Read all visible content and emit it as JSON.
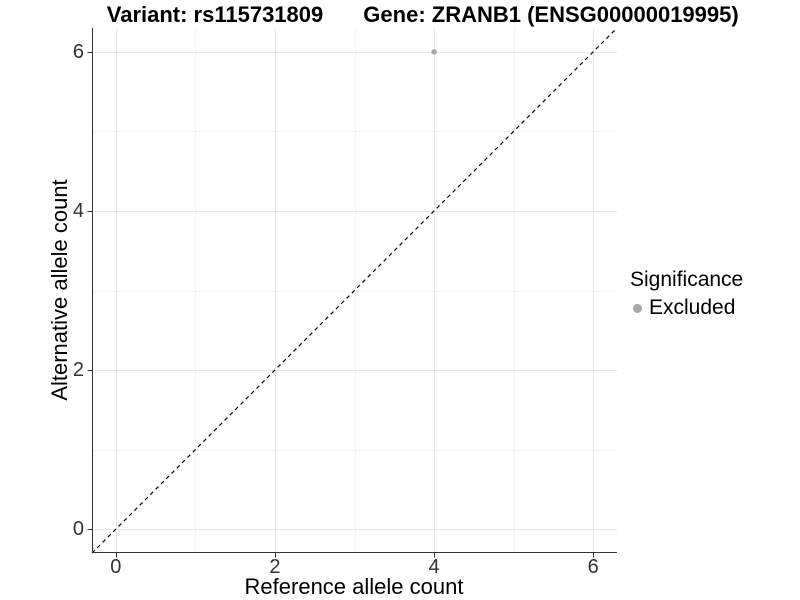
{
  "titles": {
    "variant": "Variant: rs115731809",
    "gene": "Gene: ZRANB1 (ENSG00000019995)"
  },
  "axis_x": {
    "title": "Reference allele count"
  },
  "axis_y": {
    "title": "Alternative allele count"
  },
  "legend": {
    "title": "Significance",
    "items": [
      {
        "label": "Excluded",
        "color": "#a8a8a8"
      }
    ]
  },
  "chart_data": {
    "type": "scatter",
    "title_left": "Variant: rs115731809",
    "title_right": "Gene: ZRANB1 (ENSG00000019995)",
    "xlabel": "Reference allele count",
    "ylabel": "Alternative allele count",
    "xlim": [
      -0.3,
      6.3
    ],
    "ylim": [
      -0.3,
      6.3
    ],
    "xticks": [
      0,
      2,
      4,
      6
    ],
    "yticks": [
      0,
      2,
      4,
      6
    ],
    "grid": true,
    "minor_grid": true,
    "legend_position": "right",
    "series": [
      {
        "name": "Excluded",
        "color": "#a8a8a8",
        "points": [
          [
            4,
            6
          ]
        ]
      }
    ],
    "reference_line": {
      "type": "identity",
      "style": "dashed",
      "color": "#000000",
      "from": [
        -0.3,
        -0.3
      ],
      "to": [
        6.3,
        6.3
      ]
    }
  }
}
